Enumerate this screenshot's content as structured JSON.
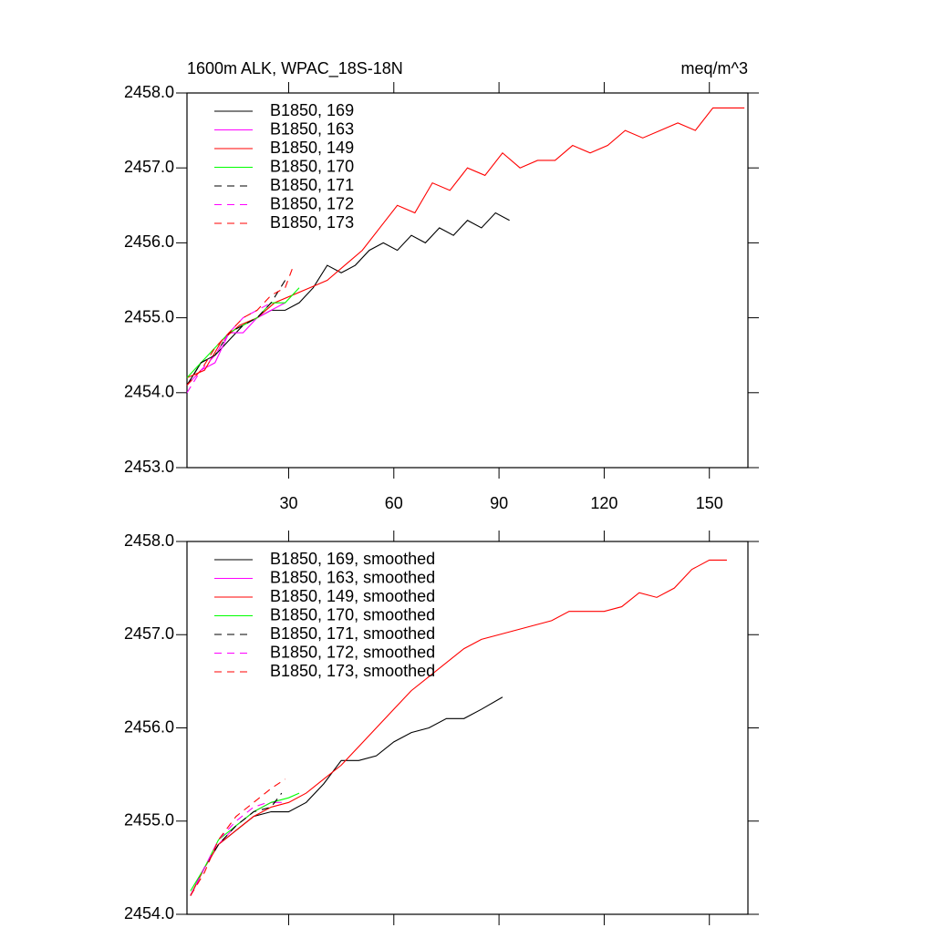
{
  "chart_data": [
    {
      "type": "line",
      "title": "1600m ALK, WPAC_18S-18N",
      "units": "meq/m^3",
      "xlim": [
        1,
        161
      ],
      "xticks": [
        30,
        60,
        90,
        120,
        150
      ],
      "xticklabels": true,
      "ylim": [
        2453,
        2458
      ],
      "yticks": [
        {
          "value": 2453,
          "label": "2453.0"
        },
        {
          "value": 2454,
          "label": "2454.0"
        },
        {
          "value": 2455,
          "label": "2455.0"
        },
        {
          "value": 2456,
          "label": "2456.0"
        },
        {
          "value": 2457,
          "label": "2457.0"
        },
        {
          "value": 2458,
          "label": "2458.0"
        }
      ],
      "series": [
        {
          "name": "B1850, 169",
          "color": "#000000",
          "dashed": false,
          "x": [
            1,
            5,
            9,
            13,
            17,
            21,
            25,
            29,
            33,
            37,
            41,
            45,
            49,
            53,
            57,
            61,
            65,
            69,
            73,
            77,
            81,
            85,
            89,
            93
          ],
          "values": [
            2454.1,
            2454.4,
            2454.5,
            2454.7,
            2454.9,
            2455.0,
            2455.1,
            2455.1,
            2455.2,
            2455.4,
            2455.7,
            2455.6,
            2455.7,
            2455.9,
            2456.0,
            2455.9,
            2456.1,
            2456.0,
            2456.2,
            2456.1,
            2456.3,
            2456.2,
            2456.4,
            2456.3
          ]
        },
        {
          "name": "B1850, 163",
          "color": "#ff00ff",
          "dashed": false,
          "x": [
            1,
            5,
            9,
            13,
            17,
            21,
            25,
            29
          ],
          "values": [
            2454.1,
            2454.3,
            2454.4,
            2454.8,
            2454.8,
            2455.0,
            2455.1,
            2455.2
          ]
        },
        {
          "name": "B1850, 149",
          "color": "#ff0000",
          "dashed": false,
          "x": [
            1,
            6,
            11,
            16,
            21,
            26,
            31,
            36,
            41,
            46,
            51,
            56,
            61,
            66,
            71,
            76,
            81,
            86,
            91,
            96,
            101,
            106,
            111,
            116,
            121,
            126,
            131,
            136,
            141,
            146,
            151,
            156,
            160
          ],
          "values": [
            2454.2,
            2454.3,
            2454.7,
            2454.9,
            2455.0,
            2455.2,
            2455.3,
            2455.4,
            2455.5,
            2455.7,
            2455.9,
            2456.2,
            2456.5,
            2456.4,
            2456.8,
            2456.7,
            2457.0,
            2456.9,
            2457.2,
            2457.0,
            2457.1,
            2457.1,
            2457.3,
            2457.2,
            2457.3,
            2457.5,
            2457.4,
            2457.5,
            2457.6,
            2457.5,
            2457.8,
            2457.8,
            2457.8
          ]
        },
        {
          "name": "B1850, 170",
          "color": "#00ff00",
          "dashed": false,
          "x": [
            1,
            5,
            9,
            13,
            17,
            21,
            25,
            29,
            33
          ],
          "values": [
            2454.2,
            2454.4,
            2454.6,
            2454.8,
            2454.9,
            2455.0,
            2455.2,
            2455.2,
            2455.4
          ]
        },
        {
          "name": "B1850, 171",
          "color": "#000000",
          "dashed": true,
          "x": [
            1,
            5,
            9,
            13,
            17,
            21,
            25,
            29
          ],
          "values": [
            2454.1,
            2454.4,
            2454.5,
            2454.8,
            2454.9,
            2455.0,
            2455.2,
            2455.5
          ]
        },
        {
          "name": "B1850, 172",
          "color": "#ff00ff",
          "dashed": true,
          "x": [
            1,
            5,
            9,
            13,
            17,
            21,
            25
          ],
          "values": [
            2454.0,
            2454.3,
            2454.5,
            2454.8,
            2455.0,
            2455.1,
            2455.2
          ]
        },
        {
          "name": "B1850, 173",
          "color": "#ff0000",
          "dashed": true,
          "x": [
            1,
            5,
            9,
            13,
            17,
            21,
            25,
            29,
            31
          ],
          "values": [
            2454.1,
            2454.3,
            2454.6,
            2454.8,
            2455.0,
            2455.1,
            2455.3,
            2455.4,
            2455.65
          ]
        }
      ]
    },
    {
      "type": "line",
      "xlim": [
        1,
        161
      ],
      "xticks": [
        30,
        60,
        90,
        120,
        150
      ],
      "xticklabels": false,
      "ylim": [
        2454,
        2458
      ],
      "yticks": [
        {
          "value": 2454,
          "label": "2454.0"
        },
        {
          "value": 2455,
          "label": "2455.0"
        },
        {
          "value": 2456,
          "label": "2456.0"
        },
        {
          "value": 2457,
          "label": "2457.0"
        },
        {
          "value": 2458,
          "label": "2458.0"
        }
      ],
      "series": [
        {
          "name": "B1850, 169, smoothed",
          "color": "#000000",
          "dashed": false,
          "x": [
            2,
            6,
            10,
            15,
            20,
            25,
            30,
            35,
            40,
            45,
            50,
            55,
            60,
            65,
            70,
            75,
            80,
            85,
            91
          ],
          "values": [
            2454.2,
            2454.5,
            2454.75,
            2454.9,
            2455.05,
            2455.1,
            2455.1,
            2455.2,
            2455.4,
            2455.65,
            2455.65,
            2455.7,
            2455.85,
            2455.95,
            2456.0,
            2456.1,
            2456.1,
            2456.2,
            2456.33
          ]
        },
        {
          "name": "B1850, 163, smoothed",
          "color": "#ff00ff",
          "dashed": false,
          "x": [
            2,
            6,
            10,
            15,
            20,
            25,
            28
          ],
          "values": [
            2454.2,
            2454.5,
            2454.75,
            2454.95,
            2455.1,
            2455.2,
            2455.2
          ]
        },
        {
          "name": "B1850, 149, smoothed",
          "color": "#ff0000",
          "dashed": false,
          "x": [
            2,
            6,
            10,
            15,
            20,
            25,
            30,
            35,
            40,
            45,
            50,
            55,
            60,
            65,
            70,
            75,
            80,
            85,
            90,
            95,
            100,
            105,
            110,
            115,
            120,
            125,
            130,
            135,
            140,
            145,
            150,
            155
          ],
          "values": [
            2454.2,
            2454.5,
            2454.75,
            2454.9,
            2455.05,
            2455.15,
            2455.2,
            2455.3,
            2455.45,
            2455.6,
            2455.8,
            2456.0,
            2456.2,
            2456.4,
            2456.55,
            2456.7,
            2456.85,
            2456.95,
            2457.0,
            2457.05,
            2457.1,
            2457.15,
            2457.25,
            2457.25,
            2457.25,
            2457.3,
            2457.45,
            2457.4,
            2457.5,
            2457.7,
            2457.8,
            2457.8
          ]
        },
        {
          "name": "B1850, 170, smoothed",
          "color": "#00ff00",
          "dashed": false,
          "x": [
            2,
            6,
            10,
            15,
            20,
            25,
            30,
            33
          ],
          "values": [
            2454.25,
            2454.5,
            2454.8,
            2454.95,
            2455.1,
            2455.2,
            2455.25,
            2455.3
          ]
        },
        {
          "name": "B1850, 171, smoothed",
          "color": "#000000",
          "dashed": true,
          "x": [
            2,
            6,
            10,
            15,
            20,
            25,
            28
          ],
          "values": [
            2454.2,
            2454.5,
            2454.75,
            2454.95,
            2455.1,
            2455.15,
            2455.3
          ]
        },
        {
          "name": "B1850, 172, smoothed",
          "color": "#ff00ff",
          "dashed": true,
          "x": [
            2,
            6,
            10,
            15,
            20,
            24
          ],
          "values": [
            2454.2,
            2454.5,
            2454.8,
            2455.0,
            2455.15,
            2455.2
          ]
        },
        {
          "name": "B1850, 173, smoothed",
          "color": "#ff0000",
          "dashed": true,
          "x": [
            2,
            6,
            10,
            15,
            20,
            25,
            29
          ],
          "values": [
            2454.2,
            2454.45,
            2454.8,
            2455.05,
            2455.2,
            2455.35,
            2455.45
          ]
        }
      ]
    }
  ]
}
